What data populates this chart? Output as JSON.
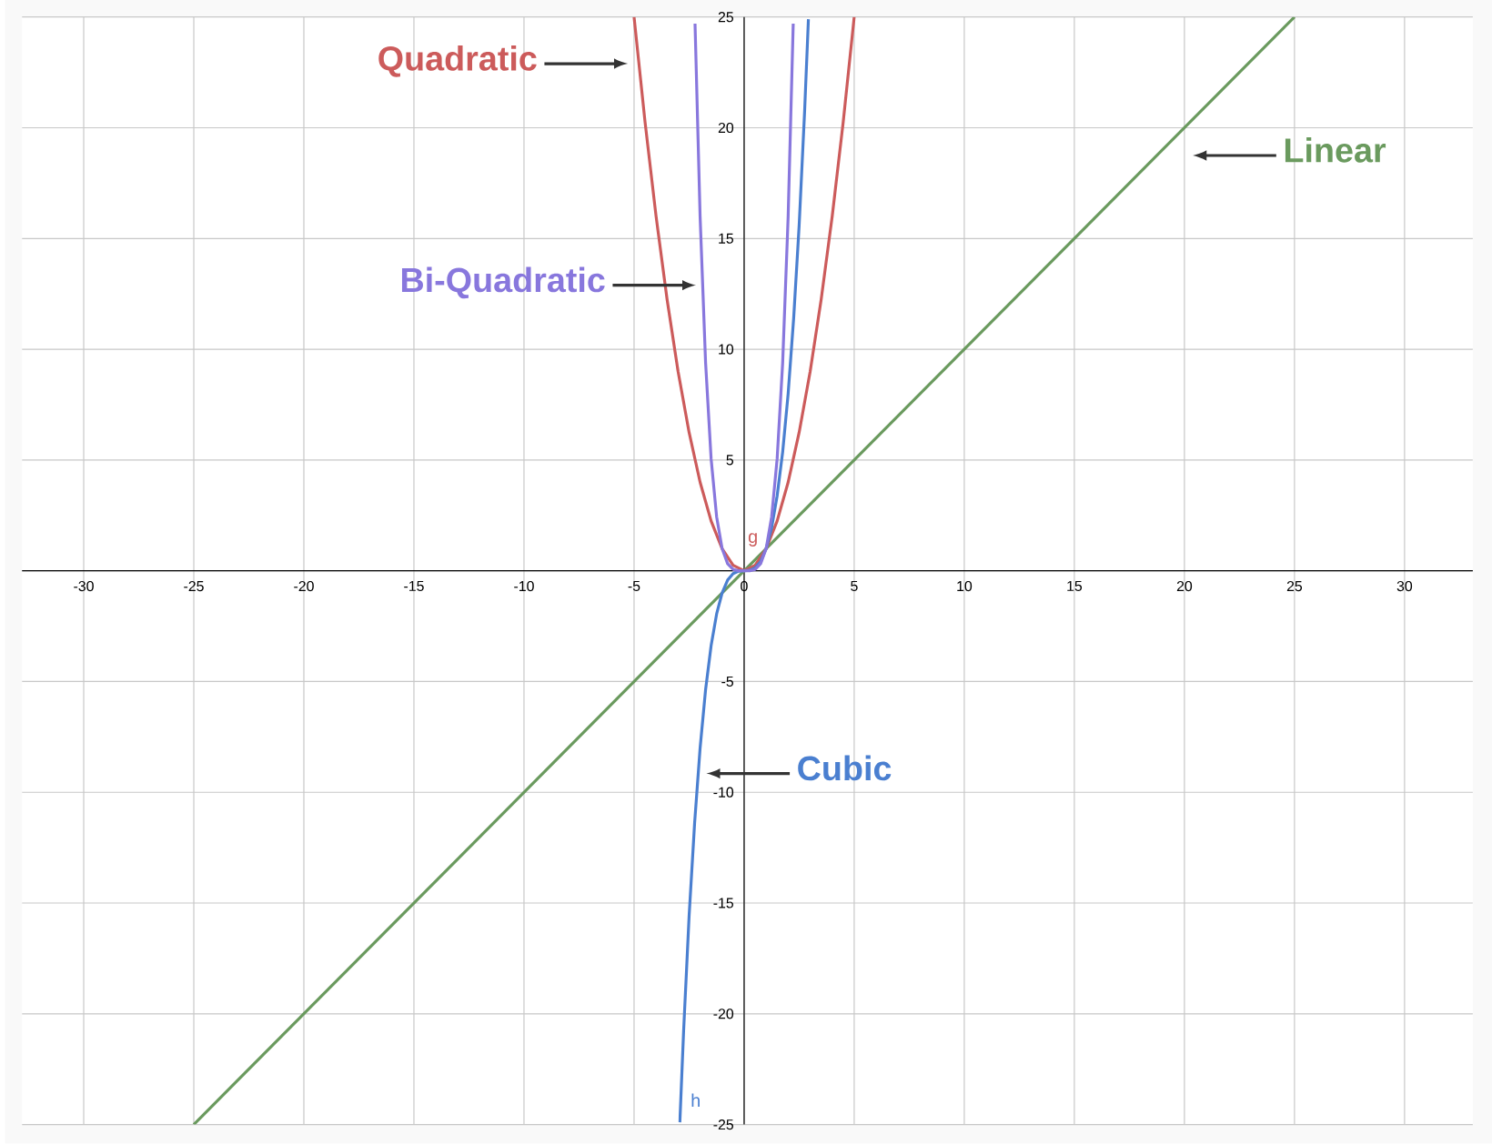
{
  "chart_data": {
    "type": "line",
    "series": [
      {
        "name": "Linear",
        "color": "#6a9a5e",
        "x": [
          -25,
          0,
          25
        ],
        "values": [
          -25,
          0,
          25
        ]
      },
      {
        "name": "Quadratic",
        "color": "#cc5b5b",
        "x": [
          -5,
          -4.5,
          -4,
          -3.5,
          -3,
          -2.5,
          -2,
          -1.5,
          -1,
          -0.5,
          0,
          0.5,
          1,
          1.5,
          2,
          2.5,
          3,
          3.5,
          4,
          4.5,
          5
        ],
        "values": [
          25,
          20.25,
          16,
          12.25,
          9,
          6.25,
          4,
          2.25,
          1,
          0.25,
          0,
          0.25,
          1,
          2.25,
          4,
          6.25,
          9,
          12.25,
          16,
          20.25,
          25
        ]
      },
      {
        "name": "Cubic",
        "color": "#4a7fd0",
        "x": [
          -2.92,
          -2.75,
          -2.5,
          -2.25,
          -2,
          -1.75,
          -1.5,
          -1.25,
          -1,
          -0.75,
          -0.5,
          -0.25,
          0,
          0.25,
          0.5,
          0.75,
          1,
          1.25,
          1.5,
          1.75,
          2,
          2.25,
          2.5,
          2.75,
          2.92
        ],
        "values": [
          -24.9,
          -20.8,
          -15.6,
          -11.4,
          -8,
          -5.36,
          -3.38,
          -1.95,
          -1,
          -0.42,
          -0.13,
          -0.02,
          0,
          0.02,
          0.13,
          0.42,
          1,
          1.95,
          3.38,
          5.36,
          8,
          11.4,
          15.6,
          20.8,
          24.9
        ]
      },
      {
        "name": "Bi-Quadratic",
        "color": "#8877dd",
        "x": [
          -2.23,
          -2,
          -1.75,
          -1.5,
          -1.25,
          -1,
          -0.75,
          -0.5,
          -0.25,
          0,
          0.25,
          0.5,
          0.75,
          1,
          1.25,
          1.5,
          1.75,
          2,
          2.23
        ],
        "values": [
          24.7,
          16,
          9.38,
          5.06,
          2.44,
          1,
          0.32,
          0.06,
          0,
          0,
          0,
          0.06,
          0.32,
          1,
          2.44,
          5.06,
          9.38,
          16,
          24.7
        ]
      }
    ],
    "annotations": [
      "g",
      "h"
    ],
    "xlim": [
      -32.8,
      33.1
    ],
    "ylim": [
      -25,
      25
    ],
    "xticks": [
      -30,
      -25,
      -20,
      -15,
      -10,
      -5,
      0,
      5,
      10,
      15,
      20,
      25,
      30
    ],
    "yticks": [
      -25,
      -20,
      -15,
      -10,
      -5,
      {
        "value": 0,
        "label": null
      },
      5,
      10,
      15,
      20,
      25
    ],
    "grid": true,
    "legend": false,
    "marker": "none",
    "line_style": "solid"
  }
}
